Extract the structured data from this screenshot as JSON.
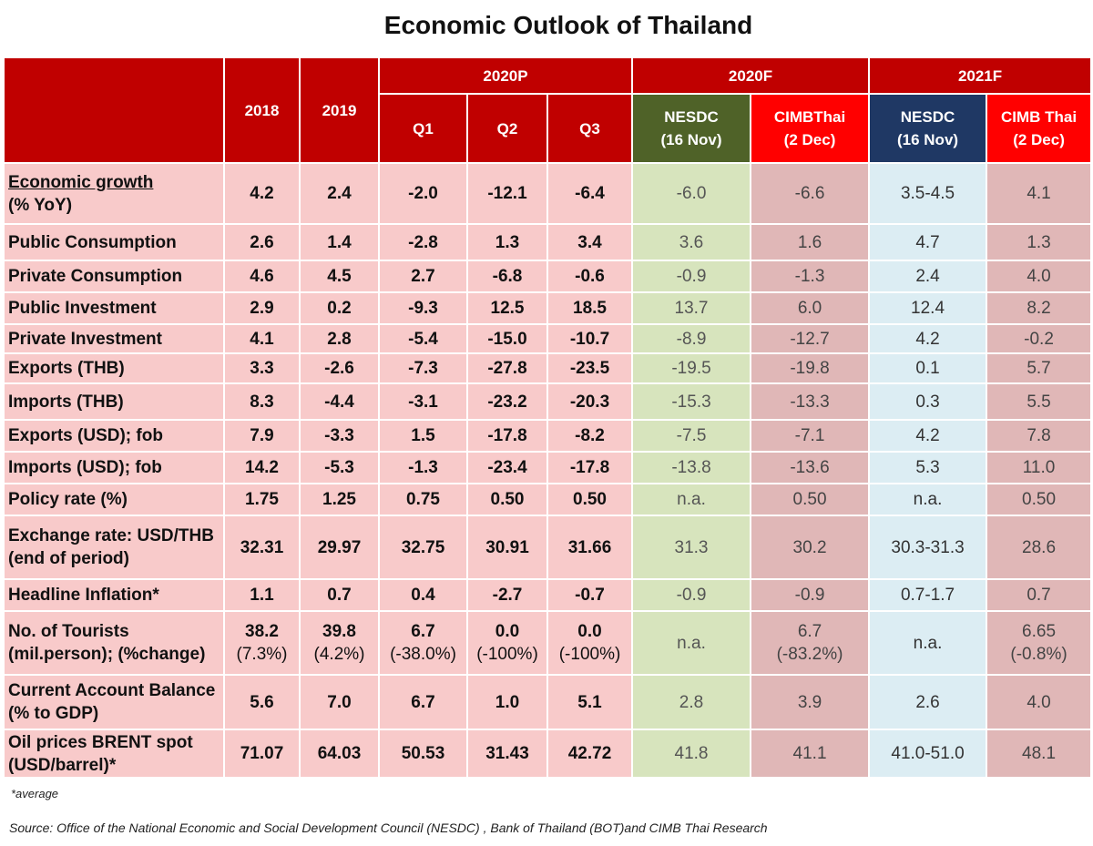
{
  "title": "Economic Outlook of Thailand",
  "table": {
    "years": [
      "2018",
      "2019"
    ],
    "groups": [
      {
        "label": "2020P",
        "columns": [
          [
            "Q1"
          ],
          [
            "Q2"
          ],
          [
            "Q3"
          ]
        ]
      },
      {
        "label": "2020F",
        "columns": [
          [
            "NESDC",
            "(16 Nov)"
          ],
          [
            "CIMBThai",
            "(2 Dec)"
          ]
        ]
      },
      {
        "label": "2021F",
        "columns": [
          [
            "NESDC",
            "(16 Nov)"
          ],
          [
            "CIMB Thai",
            "(2 Dec)"
          ]
        ]
      }
    ],
    "rows": [
      {
        "label": [
          "Economic growth",
          "(% YoY)"
        ],
        "cells": [
          "4.2",
          "2.4",
          "-2.0",
          "-12.1",
          "-6.4",
          "-6.0",
          "-6.6",
          "3.5-4.5",
          "4.1"
        ]
      },
      {
        "label": [
          "Public Consumption"
        ],
        "cells": [
          "2.6",
          "1.4",
          "-2.8",
          "1.3",
          "3.4",
          "3.6",
          "1.6",
          "4.7",
          "1.3"
        ]
      },
      {
        "label": [
          "Private Consumption"
        ],
        "cells": [
          "4.6",
          "4.5",
          "2.7",
          "-6.8",
          "-0.6",
          "-0.9",
          "-1.3",
          "2.4",
          "4.0"
        ]
      },
      {
        "label": [
          "Public Investment"
        ],
        "cells": [
          "2.9",
          "0.2",
          "-9.3",
          "12.5",
          "18.5",
          "13.7",
          "6.0",
          "12.4",
          "8.2"
        ]
      },
      {
        "label": [
          "Private Investment"
        ],
        "cells": [
          "4.1",
          "2.8",
          "-5.4",
          "-15.0",
          "-10.7",
          "-8.9",
          "-12.7",
          "4.2",
          "-0.2"
        ]
      },
      {
        "label": [
          "Exports (THB)"
        ],
        "cells": [
          "3.3",
          "-2.6",
          "-7.3",
          "-27.8",
          "-23.5",
          "-19.5",
          "-19.8",
          "0.1",
          "5.7"
        ]
      },
      {
        "label": [
          "Imports (THB)"
        ],
        "cells": [
          "8.3",
          "-4.4",
          "-3.1",
          "-23.2",
          "-20.3",
          "-15.3",
          "-13.3",
          "0.3",
          "5.5"
        ]
      },
      {
        "label": [
          "Exports (USD); fob"
        ],
        "cells": [
          "7.9",
          "-3.3",
          "1.5",
          "-17.8",
          "-8.2",
          "-7.5",
          "-7.1",
          "4.2",
          "7.8"
        ]
      },
      {
        "label": [
          "Imports (USD); fob"
        ],
        "cells": [
          "14.2",
          "-5.3",
          "-1.3",
          "-23.4",
          "-17.8",
          "-13.8",
          "-13.6",
          "5.3",
          "11.0"
        ]
      },
      {
        "label": [
          "Policy rate (%)"
        ],
        "cells": [
          "1.75",
          "1.25",
          "0.75",
          "0.50",
          "0.50",
          "n.a.",
          "0.50",
          "n.a.",
          "0.50"
        ]
      },
      {
        "label": [
          "Exchange rate: USD/THB",
          "(end of period)"
        ],
        "cells": [
          "32.31",
          "29.97",
          "32.75",
          "30.91",
          "31.66",
          "31.3",
          "30.2",
          "30.3-31.3",
          "28.6"
        ]
      },
      {
        "label": [
          "Headline Inflation*"
        ],
        "cells": [
          "1.1",
          "0.7",
          "0.4",
          "-2.7",
          "-0.7",
          "-0.9",
          "-0.9",
          "0.7-1.7",
          "0.7"
        ]
      },
      {
        "label": [
          "No. of Tourists",
          "(mil.person); (%change)"
        ],
        "cells": [
          [
            "38.2",
            "(7.3%)"
          ],
          [
            "39.8",
            "(4.2%)"
          ],
          [
            "6.7",
            "(-38.0%)"
          ],
          [
            "0.0",
            "(-100%)"
          ],
          [
            "0.0",
            "(-100%)"
          ],
          "n.a.",
          [
            "6.7",
            "(-83.2%)"
          ],
          "n.a.",
          [
            "6.65",
            "(-0.8%)"
          ]
        ]
      },
      {
        "label": [
          "Current Account Balance",
          "(% to GDP)"
        ],
        "cells": [
          "5.6",
          "7.0",
          "6.7",
          "1.0",
          "5.1",
          "2.8",
          "3.9",
          "2.6",
          "4.0"
        ]
      },
      {
        "label": [
          "Oil prices BRENT spot",
          "(USD/barrel)*"
        ],
        "cells": [
          "71.07",
          "64.03",
          "50.53",
          "31.43",
          "42.72",
          "41.8",
          "41.1",
          "41.0-51.0",
          "48.1"
        ]
      }
    ]
  },
  "footnote": "*average",
  "source": "Source: Office of the National Economic and Social Development Council (NESDC) , Bank of Thailand (BOT)and  CIMB Thai Research"
}
